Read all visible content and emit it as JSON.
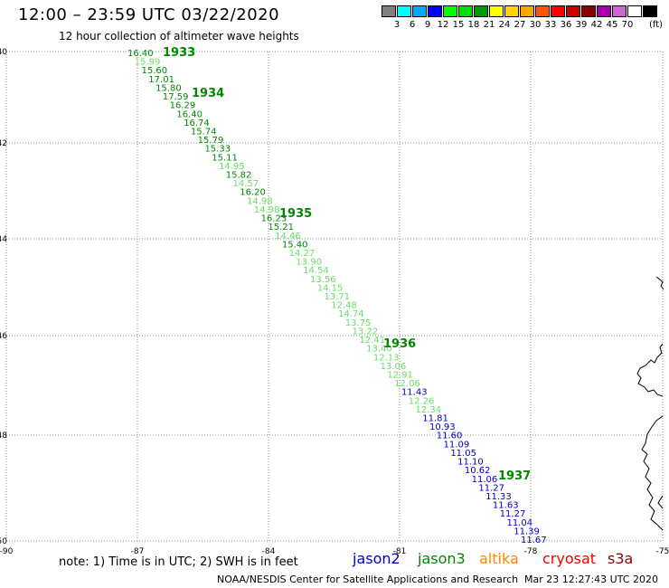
{
  "title": "12:00 – 23:59 UTC 03/22/2020",
  "subtitle": "12 hour collection of altimeter wave heights",
  "legend": {
    "colors": [
      "#808080",
      "#00ffff",
      "#00aaff",
      "#0000ff",
      "#00ff00",
      "#00dd00",
      "#009900",
      "#ffff00",
      "#ffd400",
      "#ffa500",
      "#ff5500",
      "#ff0000",
      "#cc0000",
      "#880000",
      "#aa00aa",
      "#cc66cc",
      "#ffffff",
      "#000000"
    ],
    "labels": [
      "3",
      "6",
      "9",
      "12",
      "15",
      "18",
      "21",
      "24",
      "27",
      "30",
      "33",
      "36",
      "39",
      "42",
      "45",
      "70"
    ],
    "unit": "(ft)"
  },
  "map": {
    "lat_labels": [
      "40",
      "42",
      "44",
      "46",
      "48",
      "50"
    ],
    "lon_labels": [
      "-90",
      "-87",
      "-84",
      "-81",
      "-78",
      "-75"
    ],
    "time_labels": [
      "1933",
      "1934",
      "1935",
      "1936",
      "1937"
    ],
    "sat_colors": {
      "jason2": "#0000cc",
      "jason3": "#008800",
      "jason3_light": "#66dd66"
    }
  },
  "swh": [
    {
      "v": "16.40",
      "c": "#008800"
    },
    {
      "v": "15.99",
      "c": "#66dd66"
    },
    {
      "v": "15.60",
      "c": "#008800"
    },
    {
      "v": "17.01",
      "c": "#008800"
    },
    {
      "v": "15.80",
      "c": "#008800"
    },
    {
      "v": "17.59",
      "c": "#008800"
    },
    {
      "v": "16.29",
      "c": "#008800"
    },
    {
      "v": "16.40",
      "c": "#008800"
    },
    {
      "v": "16.74",
      "c": "#008800"
    },
    {
      "v": "15.74",
      "c": "#008800"
    },
    {
      "v": "15.79",
      "c": "#008800"
    },
    {
      "v": "15.33",
      "c": "#008800"
    },
    {
      "v": "15.11",
      "c": "#008800"
    },
    {
      "v": "14.95",
      "c": "#66dd66"
    },
    {
      "v": "15.82",
      "c": "#008800"
    },
    {
      "v": "14.57",
      "c": "#66dd66"
    },
    {
      "v": "16.20",
      "c": "#008800"
    },
    {
      "v": "14.98",
      "c": "#66dd66"
    },
    {
      "v": "14.98",
      "c": "#66dd66"
    },
    {
      "v": "16.23",
      "c": "#008800"
    },
    {
      "v": "15.21",
      "c": "#008800"
    },
    {
      "v": "14.46",
      "c": "#66dd66"
    },
    {
      "v": "15.40",
      "c": "#008800"
    },
    {
      "v": "14.27",
      "c": "#66dd66"
    },
    {
      "v": "13.90",
      "c": "#66dd66"
    },
    {
      "v": "14.54",
      "c": "#66dd66"
    },
    {
      "v": "13.56",
      "c": "#66dd66"
    },
    {
      "v": "14.15",
      "c": "#66dd66"
    },
    {
      "v": "13.71",
      "c": "#66dd66"
    },
    {
      "v": "12.48",
      "c": "#66dd66"
    },
    {
      "v": "14.74",
      "c": "#66dd66"
    },
    {
      "v": "13.75",
      "c": "#66dd66"
    },
    {
      "v": "13.22",
      "c": "#66dd66"
    },
    {
      "v": "12.41",
      "c": "#66dd66"
    },
    {
      "v": "13.40",
      "c": "#66dd66"
    },
    {
      "v": "12.13",
      "c": "#66dd66"
    },
    {
      "v": "13.06",
      "c": "#66dd66"
    },
    {
      "v": "12.91",
      "c": "#66dd66"
    },
    {
      "v": "12.06",
      "c": "#66dd66"
    },
    {
      "v": "11.43",
      "c": "#0000cc"
    },
    {
      "v": "12.26",
      "c": "#66dd66"
    },
    {
      "v": "12.34",
      "c": "#66dd66"
    },
    {
      "v": "11.81",
      "c": "#0000cc"
    },
    {
      "v": "10.93",
      "c": "#0000cc"
    },
    {
      "v": "11.60",
      "c": "#0000cc"
    },
    {
      "v": "11.09",
      "c": "#0000cc"
    },
    {
      "v": "11.05",
      "c": "#0000cc"
    },
    {
      "v": "11.10",
      "c": "#0000cc"
    },
    {
      "v": "10.62",
      "c": "#0000cc"
    },
    {
      "v": "11.06",
      "c": "#0000cc"
    },
    {
      "v": "11.27",
      "c": "#0000cc"
    },
    {
      "v": "11.33",
      "c": "#0000cc"
    },
    {
      "v": "11.63",
      "c": "#0000cc"
    },
    {
      "v": "11.27",
      "c": "#0000cc"
    },
    {
      "v": "11.04",
      "c": "#0000cc"
    },
    {
      "v": "11.39",
      "c": "#0000cc"
    },
    {
      "v": "11.67",
      "c": "#0000cc"
    }
  ],
  "footer": {
    "note": "note: 1) Time is in UTC; 2) SWH is in feet",
    "satellites": [
      {
        "name": "jason2",
        "color": "#0000cc"
      },
      {
        "name": "jason3",
        "color": "#008800"
      },
      {
        "name": "altika",
        "color": "#ff8800"
      },
      {
        "name": "cryosat",
        "color": "#ee0000"
      },
      {
        "name": "s3a",
        "color": "#880000"
      }
    ],
    "credit": "NOAA/NESDIS Center for Satellite Applications and Research",
    "timestamp": "Mar 23 12:27:43 UTC 2020"
  }
}
